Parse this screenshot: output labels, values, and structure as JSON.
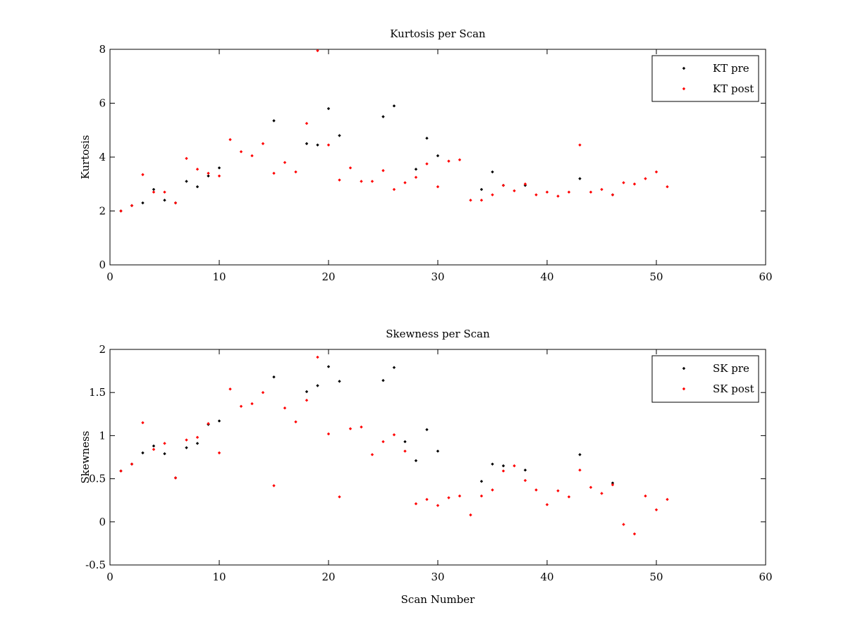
{
  "chart_data": [
    {
      "type": "scatter",
      "title": "Kurtosis per Scan",
      "xlabel": "",
      "ylabel": "Kurtosis",
      "xlim": [
        0,
        60
      ],
      "ylim": [
        0,
        8
      ],
      "xticks": [
        "0",
        "10",
        "20",
        "30",
        "40",
        "50",
        "60"
      ],
      "yticks": [
        "0",
        "2",
        "4",
        "6",
        "8"
      ],
      "xtick_values": [
        0,
        10,
        20,
        30,
        40,
        50,
        60
      ],
      "ytick_values": [
        0,
        2,
        4,
        6,
        8
      ],
      "grid": false,
      "legend_position": "top-right",
      "series": [
        {
          "name": "KT pre",
          "color": "#000000",
          "x": [
            1,
            2,
            3,
            4,
            5,
            6,
            7,
            8,
            9,
            10,
            15,
            18,
            19,
            20,
            21,
            25,
            26,
            28,
            29,
            30,
            34,
            35,
            36,
            38,
            43,
            46
          ],
          "y": [
            2.0,
            2.2,
            2.3,
            2.8,
            2.4,
            2.3,
            3.1,
            2.9,
            3.3,
            3.6,
            5.35,
            4.5,
            4.45,
            5.8,
            4.8,
            5.5,
            5.9,
            3.55,
            4.7,
            4.05,
            2.8,
            3.45,
            2.95,
            2.95,
            3.2,
            2.6
          ]
        },
        {
          "name": "KT post",
          "color": "#ff0000",
          "x": [
            1,
            2,
            3,
            4,
            5,
            6,
            7,
            8,
            9,
            10,
            11,
            12,
            13,
            14,
            15,
            16,
            17,
            18,
            19,
            20,
            21,
            22,
            23,
            24,
            25,
            26,
            27,
            28,
            29,
            30,
            31,
            32,
            33,
            34,
            35,
            36,
            37,
            38,
            39,
            40,
            41,
            42,
            43,
            44,
            45,
            46,
            47,
            48,
            49,
            50,
            51
          ],
          "y": [
            2.0,
            2.2,
            3.35,
            2.7,
            2.7,
            2.3,
            3.95,
            3.55,
            3.4,
            3.3,
            4.65,
            4.2,
            4.05,
            4.5,
            3.4,
            3.8,
            3.45,
            5.25,
            7.95,
            4.45,
            3.15,
            3.6,
            3.1,
            3.1,
            3.5,
            2.8,
            3.05,
            3.25,
            3.75,
            2.9,
            3.85,
            3.9,
            2.4,
            2.4,
            2.6,
            2.95,
            2.75,
            3.0,
            2.6,
            2.7,
            2.55,
            2.7,
            4.45,
            2.7,
            2.8,
            2.6,
            3.05,
            3.0,
            3.2,
            3.45,
            2.9
          ]
        }
      ]
    },
    {
      "type": "scatter",
      "title": "Skewness per Scan",
      "xlabel": "Scan Number",
      "ylabel": "Skewness",
      "xlim": [
        0,
        60
      ],
      "ylim": [
        -0.5,
        2
      ],
      "xticks": [
        "0",
        "10",
        "20",
        "30",
        "40",
        "50",
        "60"
      ],
      "yticks": [
        "-0.5",
        "0",
        "0.5",
        "1",
        "1.5",
        "2"
      ],
      "xtick_values": [
        0,
        10,
        20,
        30,
        40,
        50,
        60
      ],
      "ytick_values": [
        -0.5,
        0,
        0.5,
        1,
        1.5,
        2
      ],
      "grid": false,
      "legend_position": "top-right",
      "series": [
        {
          "name": "SK pre",
          "color": "#000000",
          "x": [
            1,
            2,
            3,
            4,
            5,
            6,
            7,
            8,
            9,
            10,
            15,
            18,
            19,
            20,
            21,
            25,
            26,
            27,
            28,
            29,
            30,
            34,
            35,
            36,
            38,
            43,
            46
          ],
          "y": [
            0.59,
            0.67,
            0.8,
            0.88,
            0.79,
            0.51,
            0.86,
            0.91,
            1.13,
            1.17,
            1.68,
            1.51,
            1.58,
            1.8,
            1.63,
            1.64,
            1.79,
            0.93,
            0.71,
            1.07,
            0.82,
            0.47,
            0.67,
            0.65,
            0.6,
            0.78,
            0.45
          ]
        },
        {
          "name": "SK post",
          "color": "#ff0000",
          "x": [
            1,
            2,
            3,
            4,
            5,
            6,
            7,
            8,
            9,
            10,
            11,
            12,
            13,
            14,
            15,
            16,
            17,
            18,
            19,
            20,
            21,
            22,
            23,
            24,
            25,
            26,
            27,
            28,
            29,
            30,
            31,
            32,
            33,
            34,
            35,
            36,
            37,
            38,
            39,
            40,
            41,
            42,
            43,
            44,
            45,
            46,
            47,
            48,
            49,
            50,
            51
          ],
          "y": [
            0.59,
            0.67,
            1.15,
            0.84,
            0.91,
            0.51,
            0.95,
            0.98,
            1.14,
            0.8,
            1.54,
            1.34,
            1.37,
            1.5,
            0.42,
            1.32,
            1.16,
            1.41,
            1.91,
            1.02,
            0.29,
            1.08,
            1.1,
            0.78,
            0.93,
            1.01,
            0.82,
            0.21,
            0.26,
            0.19,
            0.28,
            0.3,
            0.08,
            0.3,
            0.37,
            0.59,
            0.65,
            0.48,
            0.37,
            0.2,
            0.36,
            0.29,
            0.6,
            0.4,
            0.33,
            0.43,
            -0.03,
            -0.14,
            0.3,
            0.14,
            0.26
          ]
        }
      ]
    }
  ]
}
